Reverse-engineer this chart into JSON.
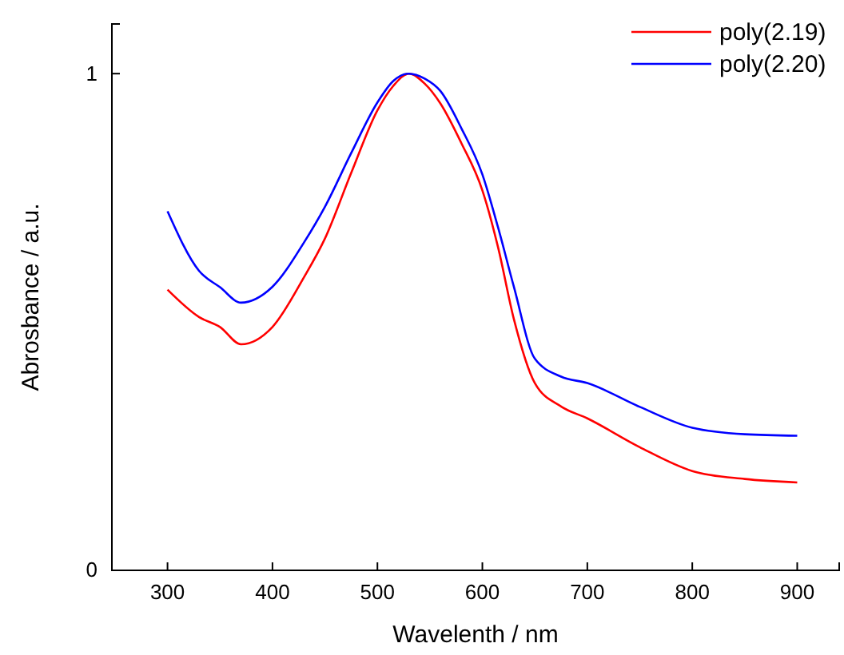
{
  "chart_data": {
    "type": "line",
    "xlabel": "Wavelenth / nm",
    "ylabel": "Abrosbance / a.u.",
    "xlim": [
      247,
      940
    ],
    "ylim": [
      0,
      1.1
    ],
    "xticks": [
      300,
      400,
      500,
      600,
      700,
      800,
      900
    ],
    "yticks": [
      0,
      1
    ],
    "legend": "top right",
    "grid": false,
    "line_style": "solid",
    "marker": "none",
    "x": [
      300,
      330,
      350,
      370,
      400,
      430,
      450,
      475,
      500,
      515,
      530,
      545,
      560,
      580,
      600,
      615,
      630,
      650,
      675,
      700,
      750,
      800,
      850,
      900
    ],
    "series": [
      {
        "name": "poly(2.19)",
        "color": "#ff0000",
        "values": [
          0.565,
          0.51,
          0.49,
          0.455,
          0.49,
          0.59,
          0.668,
          0.8,
          0.926,
          0.975,
          1.0,
          0.98,
          0.94,
          0.86,
          0.765,
          0.65,
          0.506,
          0.377,
          0.33,
          0.306,
          0.248,
          0.2,
          0.184,
          0.177
        ]
      },
      {
        "name": "poly(2.20)",
        "color": "#0000ff",
        "values": [
          0.723,
          0.603,
          0.57,
          0.539,
          0.571,
          0.66,
          0.732,
          0.84,
          0.942,
          0.985,
          1.0,
          0.99,
          0.965,
          0.89,
          0.797,
          0.69,
          0.571,
          0.426,
          0.39,
          0.377,
          0.329,
          0.287,
          0.274,
          0.271
        ]
      }
    ]
  }
}
